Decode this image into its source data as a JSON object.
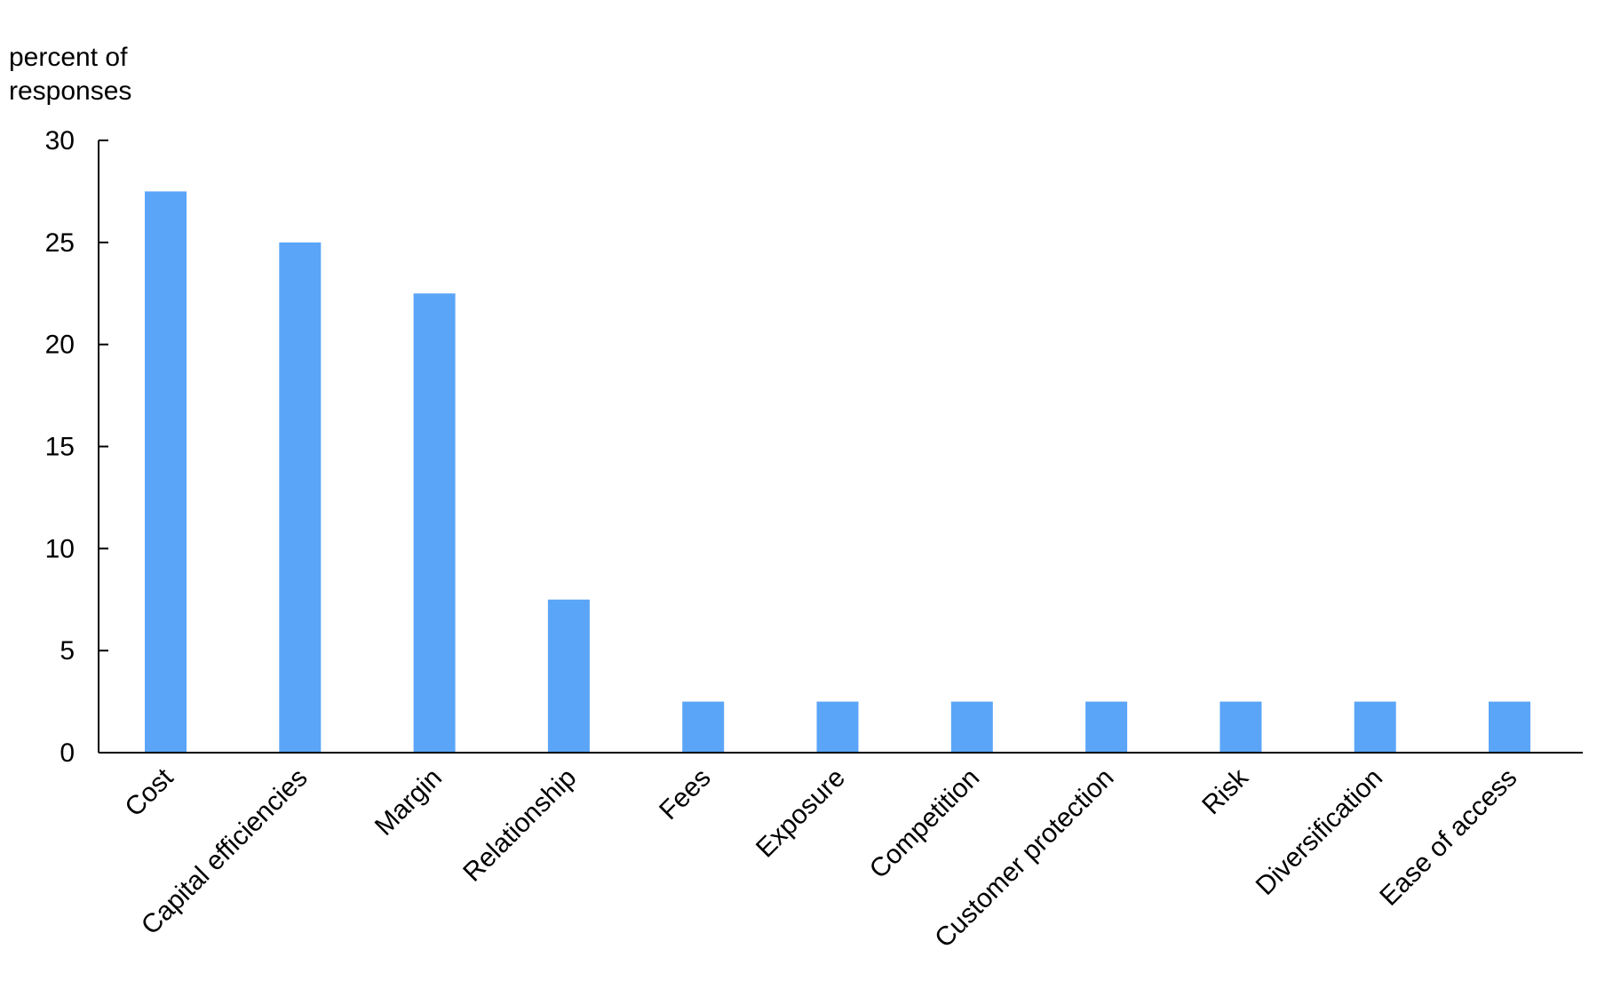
{
  "chart_data": {
    "type": "bar",
    "ylabel_lines": [
      "percent of",
      "responses"
    ],
    "categories": [
      "Cost",
      "Capital efficiencies",
      "Margin",
      "Relationship",
      "Fees",
      "Exposure",
      "Competition",
      "Customer protection",
      "Risk",
      "Diversification",
      "Ease of access"
    ],
    "values": [
      27.5,
      25,
      22.5,
      7.5,
      2.5,
      2.5,
      2.5,
      2.5,
      2.5,
      2.5,
      2.5
    ],
    "ylim": [
      0,
      30
    ],
    "yticks": [
      0,
      5,
      10,
      15,
      20,
      25,
      30
    ],
    "grid": false,
    "bar_color": "#5aa5f7"
  }
}
